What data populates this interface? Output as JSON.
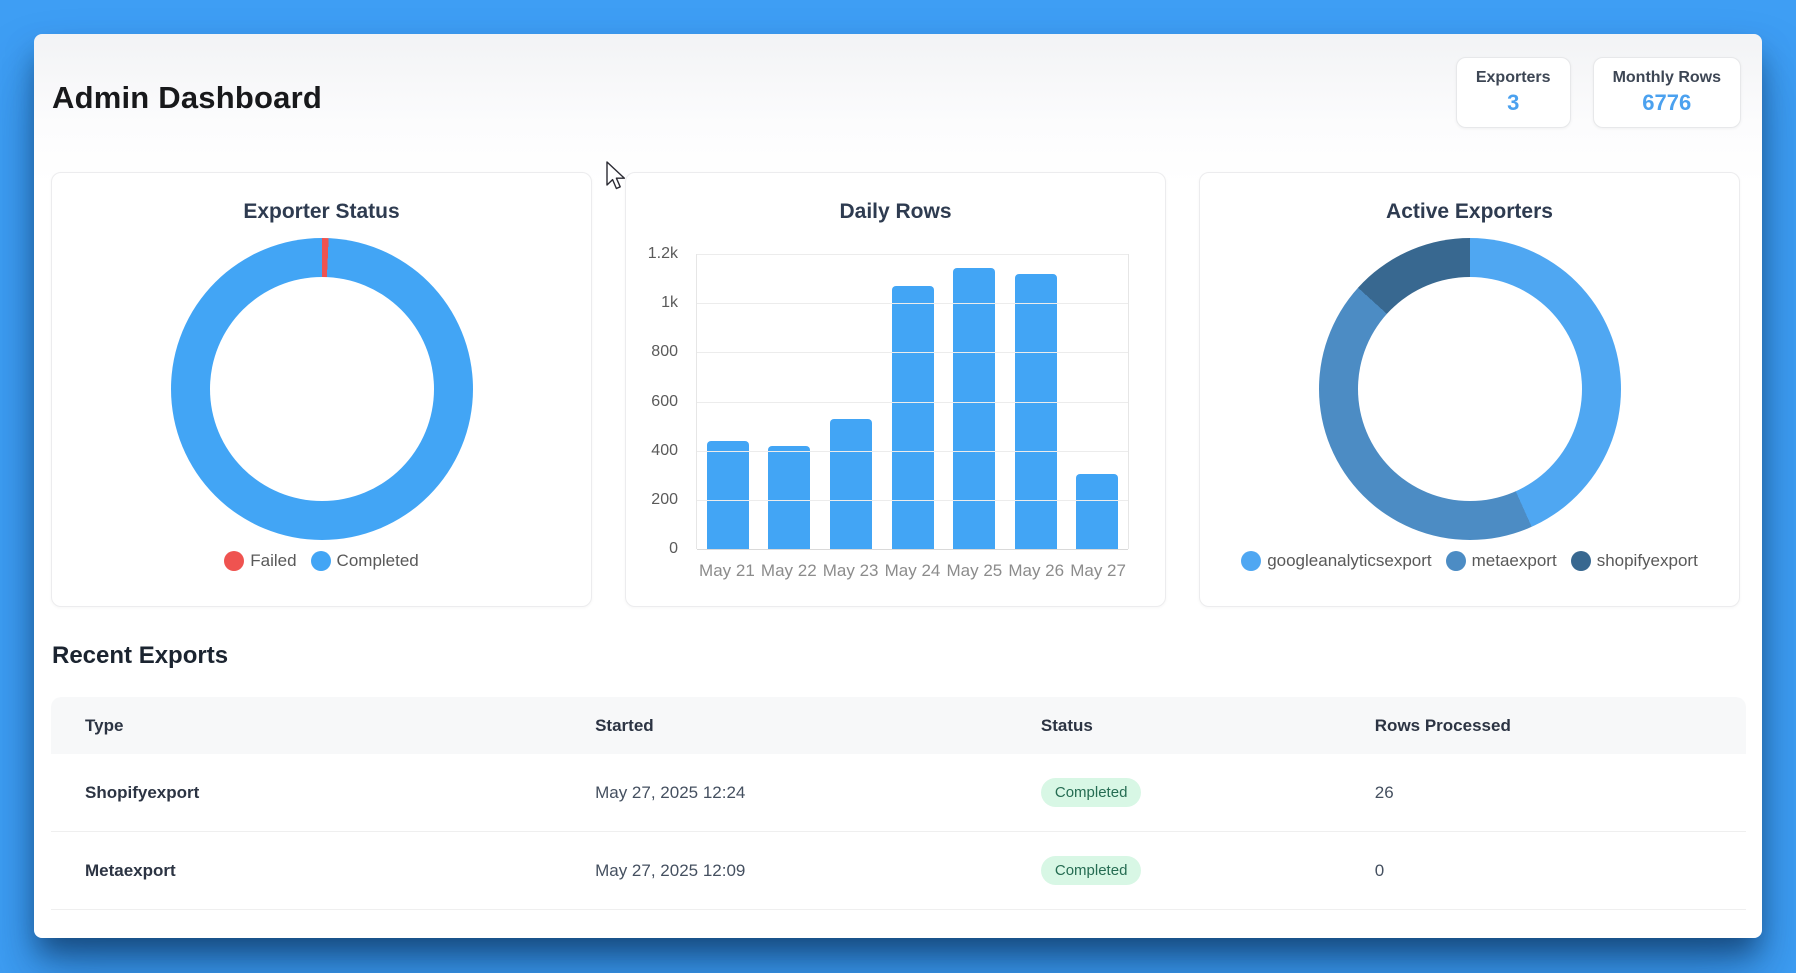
{
  "header": {
    "title": "Admin Dashboard"
  },
  "stats": [
    {
      "label": "Exporters",
      "value": "3"
    },
    {
      "label": "Monthly Rows",
      "value": "6776"
    }
  ],
  "colors": {
    "background": "#3E9EF4",
    "accent_blue": "#42A5F5",
    "stat_value": "#4BA1EF",
    "failed_red": "#EF5350",
    "badge_bg": "#d8f7e5",
    "badge_text": "#256c52"
  },
  "chart_data": [
    {
      "type": "donut",
      "title": "Exporter Status",
      "legend_position": "bottom",
      "segments": [
        {
          "label": "Failed",
          "color": "#EF5350",
          "pct": 0.7
        },
        {
          "label": "Completed",
          "color": "#42A5F5",
          "pct": 99.3
        }
      ]
    },
    {
      "type": "bar",
      "title": "Daily Rows",
      "categories": [
        "May 21",
        "May 22",
        "May 23",
        "May 24",
        "May 25",
        "May 26",
        "May 27"
      ],
      "values": [
        440,
        420,
        530,
        1070,
        1145,
        1120,
        305
      ],
      "ylim": [
        0,
        1200
      ],
      "yticks": [
        "1.2k",
        "1k",
        "800",
        "600",
        "400",
        "200",
        "0"
      ],
      "bar_color": "#42A5F5",
      "grid": true,
      "xlabel": "",
      "ylabel": ""
    },
    {
      "type": "donut",
      "title": "Active Exporters",
      "legend_position": "bottom",
      "segments": [
        {
          "label": "googleanalyticsexport",
          "color": "#4FA7F2",
          "pct": 43.3
        },
        {
          "label": "metaexport",
          "color": "#4C8CC4",
          "pct": 43.4
        },
        {
          "label": "shopifyexport",
          "color": "#386890",
          "pct": 13.3
        }
      ]
    }
  ],
  "recent_exports": {
    "heading": "Recent Exports",
    "columns": [
      "Type",
      "Started",
      "Status",
      "Rows Processed"
    ],
    "rows": [
      {
        "type": "Shopifyexport",
        "started": "May 27, 2025 12:24",
        "status": "Completed",
        "rows": "26"
      },
      {
        "type": "Metaexport",
        "started": "May 27, 2025 12:09",
        "status": "Completed",
        "rows": "0"
      }
    ]
  }
}
